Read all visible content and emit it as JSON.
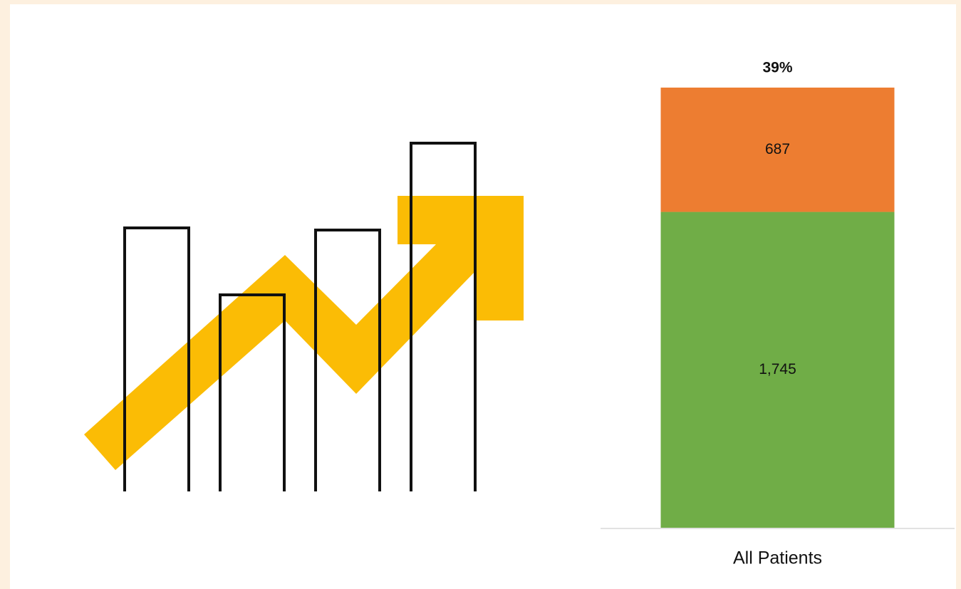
{
  "chart_data": {
    "type": "stacked-bar",
    "categories": [
      "All Patients"
    ],
    "series": [
      {
        "color": "#70ad47",
        "values": [
          1745
        ],
        "value_labels": [
          "1,745"
        ]
      },
      {
        "color": "#ed7d31",
        "values": [
          687
        ],
        "value_labels": [
          "687"
        ]
      }
    ],
    "annotation": "39%",
    "ylim": [
      0,
      2500
    ]
  }
}
